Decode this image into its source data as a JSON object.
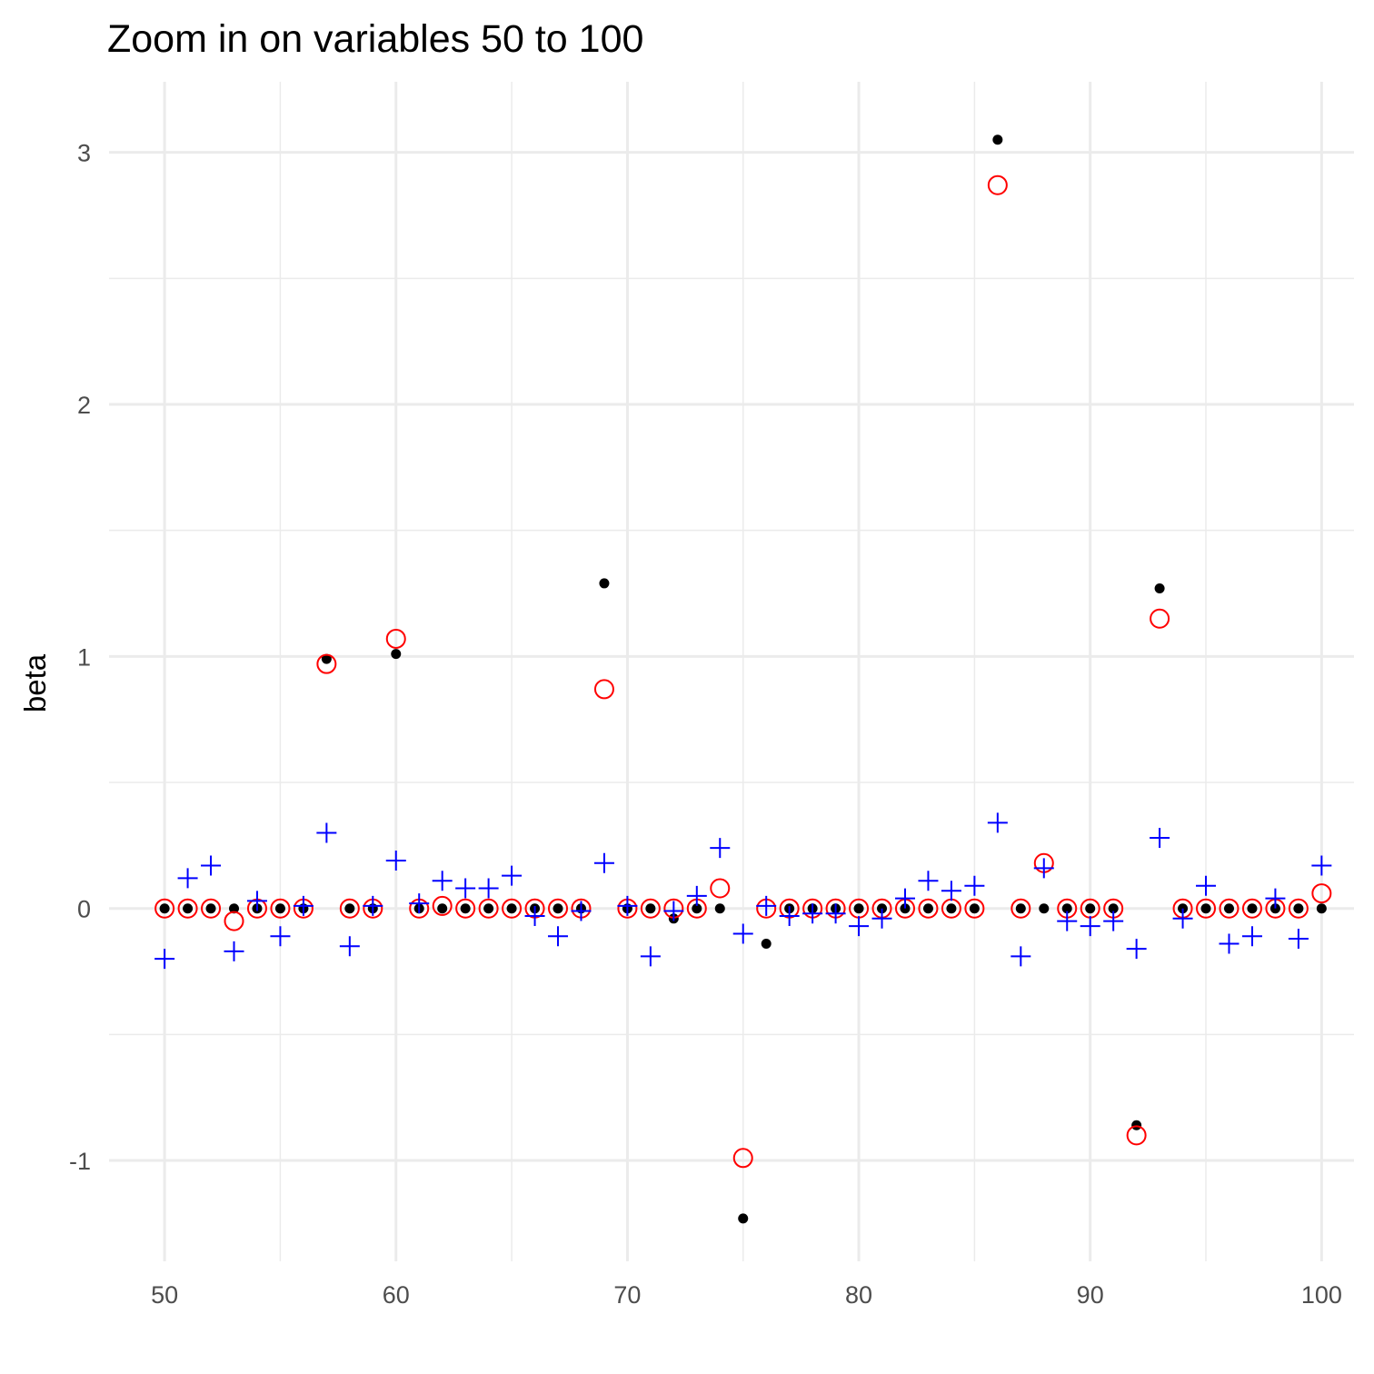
{
  "chart_data": {
    "type": "scatter",
    "title": "Zoom in on variables 50 to 100",
    "xlabel": "",
    "ylabel": "beta",
    "xlim": [
      47.6,
      101.4
    ],
    "ylim": [
      -1.4,
      3.28
    ],
    "x_ticks": [
      50,
      60,
      70,
      80,
      90,
      100
    ],
    "x_tick_labels": [
      "50",
      "60",
      "70",
      "80",
      "90",
      "100"
    ],
    "x_minor_ticks": [
      55,
      65,
      75,
      85,
      95
    ],
    "y_ticks": [
      -1,
      0,
      1,
      2,
      3
    ],
    "y_tick_labels": [
      "-1",
      "0",
      "1",
      "2",
      "3"
    ],
    "y_minor_ticks": [
      -0.5,
      0.5,
      1.5,
      2.5
    ],
    "grid": true,
    "legend": "none",
    "x": [
      50,
      51,
      52,
      53,
      54,
      55,
      56,
      57,
      58,
      59,
      60,
      61,
      62,
      63,
      64,
      65,
      66,
      67,
      68,
      69,
      70,
      71,
      72,
      73,
      74,
      75,
      76,
      77,
      78,
      79,
      80,
      81,
      82,
      83,
      84,
      85,
      86,
      87,
      88,
      89,
      90,
      91,
      92,
      93,
      94,
      95,
      96,
      97,
      98,
      99,
      100
    ],
    "series": [
      {
        "marker": "filled-circle",
        "color": "#000000",
        "values": [
          0,
          0,
          0,
          0,
          0,
          0,
          0,
          0.99,
          0,
          0,
          1.01,
          0,
          0,
          0,
          0,
          0,
          0,
          0,
          0,
          1.29,
          0,
          0,
          -0.04,
          0,
          0,
          -1.23,
          -0.14,
          0,
          0,
          0,
          0,
          0,
          0,
          0,
          0,
          0,
          3.05,
          0,
          0,
          0,
          0,
          0,
          -0.86,
          1.27,
          0,
          0,
          0,
          0,
          0,
          0,
          0
        ]
      },
      {
        "marker": "open-circle",
        "color": "#ff0000",
        "values": [
          0,
          0,
          0,
          -0.05,
          0,
          0,
          0,
          0.97,
          0,
          0,
          1.07,
          0,
          0.01,
          0,
          0,
          0,
          0,
          0,
          0,
          0.87,
          0,
          0,
          0,
          0,
          0.08,
          -0.99,
          0,
          0,
          0,
          0,
          0,
          0,
          0,
          0,
          0,
          0,
          2.87,
          0,
          0.18,
          0,
          0,
          0,
          -0.9,
          1.15,
          0,
          0,
          0,
          0,
          0,
          0,
          0.06
        ]
      },
      {
        "marker": "plus",
        "color": "#0000ff",
        "values": [
          -0.2,
          0.12,
          0.17,
          -0.17,
          0.03,
          -0.11,
          0.01,
          0.3,
          -0.15,
          0.01,
          0.19,
          0.02,
          0.11,
          0.08,
          0.08,
          0.13,
          -0.03,
          -0.11,
          -0.01,
          0.18,
          0.01,
          -0.19,
          -0.01,
          0.05,
          0.24,
          -0.1,
          0.01,
          -0.03,
          -0.02,
          -0.02,
          -0.07,
          -0.04,
          0.04,
          0.11,
          0.07,
          0.09,
          0.34,
          -0.19,
          0.16,
          -0.05,
          -0.07,
          -0.05,
          -0.16,
          0.28,
          -0.04,
          0.09,
          -0.14,
          -0.11,
          0.04,
          -0.12,
          0.17
        ]
      }
    ]
  }
}
